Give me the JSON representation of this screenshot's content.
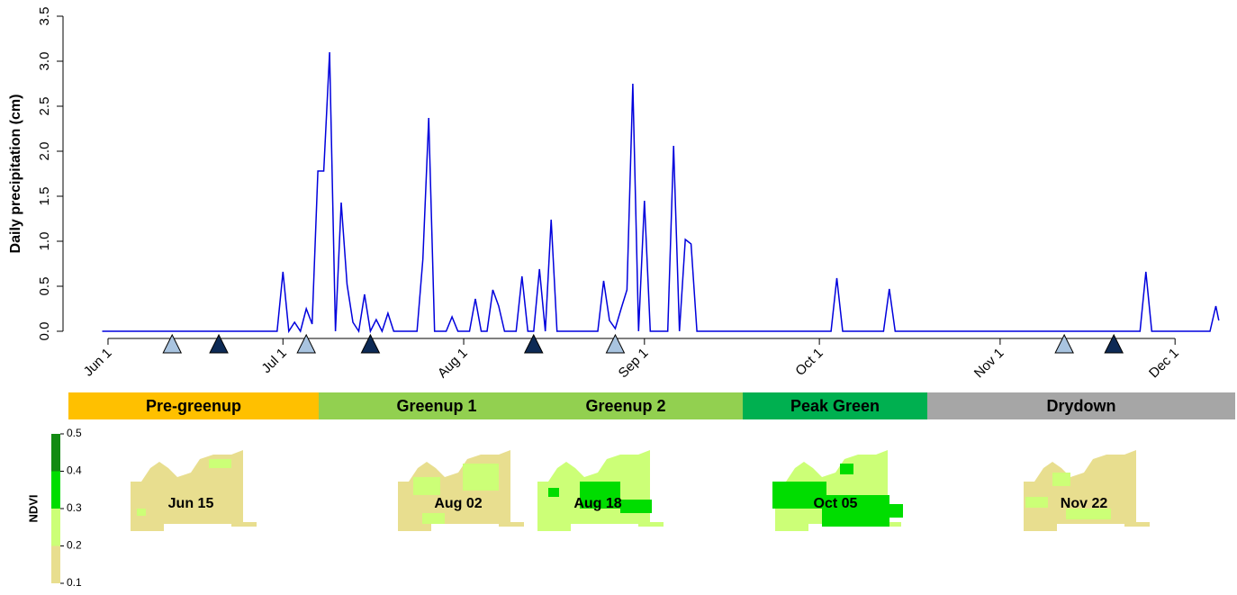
{
  "chart_data": {
    "type": "line",
    "ylabel": "Daily precipitation (cm)",
    "color": "#0000dd",
    "x": [
      -1,
      29,
      30,
      31,
      32,
      33,
      34,
      35,
      36,
      37,
      38,
      39,
      40,
      41,
      42,
      43,
      44,
      45,
      46,
      47,
      48,
      49,
      53,
      54,
      55,
      56,
      58,
      59,
      60,
      62,
      63,
      64,
      65,
      66,
      67,
      68,
      70,
      71,
      72,
      73,
      74,
      75,
      76,
      77,
      84,
      85,
      86,
      87,
      88,
      89,
      90,
      91,
      92,
      93,
      96,
      97,
      98,
      99,
      100,
      101,
      124,
      125,
      126,
      133,
      134,
      135,
      177,
      178,
      179,
      189,
      190,
      190.5
    ],
    "values": [
      0,
      0,
      0.66,
      0,
      0.1,
      0,
      0.25,
      0.08,
      1.78,
      1.78,
      3.1,
      0,
      1.43,
      0.52,
      0.1,
      0,
      0.41,
      0,
      0.13,
      0,
      0.2,
      0,
      0,
      0.8,
      2.37,
      0,
      0,
      0.16,
      0,
      0,
      0.36,
      0,
      0,
      0.46,
      0.28,
      0,
      0,
      0.61,
      0,
      0,
      0.69,
      0,
      1.24,
      0,
      0,
      0.56,
      0.12,
      0.03,
      0.25,
      0.46,
      2.75,
      0,
      1.45,
      0,
      0,
      2.06,
      0,
      1.02,
      0.97,
      0,
      0,
      0.59,
      0,
      0,
      0.47,
      0,
      0,
      0.66,
      0,
      0,
      0.28,
      0.12
    ],
    "xlim": [
      -1,
      191
    ],
    "xticks": [
      {
        "value": 0,
        "label": "Jun 1"
      },
      {
        "value": 30,
        "label": "Jul 1"
      },
      {
        "value": 61,
        "label": "Aug 1"
      },
      {
        "value": 92,
        "label": "Sep 1"
      },
      {
        "value": 122,
        "label": "Oct 1"
      },
      {
        "value": 153,
        "label": "Nov 1"
      },
      {
        "value": 183,
        "label": "Dec 1"
      }
    ],
    "ylim": [
      0,
      3.5
    ],
    "yticks": [
      {
        "value": 0,
        "label": "0.0"
      },
      {
        "value": 0.5,
        "label": "0.5"
      },
      {
        "value": 1,
        "label": "1.0"
      },
      {
        "value": 1.5,
        "label": "1.5"
      },
      {
        "value": 2,
        "label": "2.0"
      },
      {
        "value": 2.5,
        "label": "2.5"
      },
      {
        "value": 3,
        "label": "3.0"
      },
      {
        "value": 3.5,
        "label": "3.5"
      }
    ],
    "markers": {
      "x": [
        11,
        19,
        34,
        45,
        73,
        87,
        164,
        172.5
      ],
      "colors": [
        "#a9c4e0",
        "#0d2a55",
        "#a9c4e0",
        "#0d2a55",
        "#0d2a55",
        "#a9c4e0",
        "#a9c4e0",
        "#0d2a55"
      ]
    }
  },
  "phases": [
    {
      "label": "Pre-greenup",
      "color": "#ffc000"
    },
    {
      "label": "Greenup 1",
      "color": "#92d050"
    },
    {
      "label": "Greenup 2",
      "color": "#92d050"
    },
    {
      "label": "Peak Green",
      "color": "#00b050"
    },
    {
      "label": "Drydown",
      "color": "#a6a6a6"
    }
  ],
  "ndvi_legend": {
    "label": "NDVI",
    "ticks": [
      0.1,
      0.2,
      0.3,
      0.4,
      0.5
    ],
    "colors": [
      "#e8de8f",
      "#ccff77",
      "#00dd00",
      "#138a13"
    ]
  },
  "maps": [
    {
      "label": "Jun 15",
      "fill": "#e8de8f",
      "patch": "#ccff77"
    },
    {
      "label": "Aug 02",
      "fill": "#e8de8f",
      "patch": "#ccff77"
    },
    {
      "label": "Aug 18",
      "fill": "#ccff77",
      "patch": "#00dd00"
    },
    {
      "label": "Oct 05",
      "fill": "#ccff77",
      "patch": "#00dd00"
    },
    {
      "label": "Nov 22",
      "fill": "#e8de8f",
      "patch": "#ccff77"
    }
  ]
}
